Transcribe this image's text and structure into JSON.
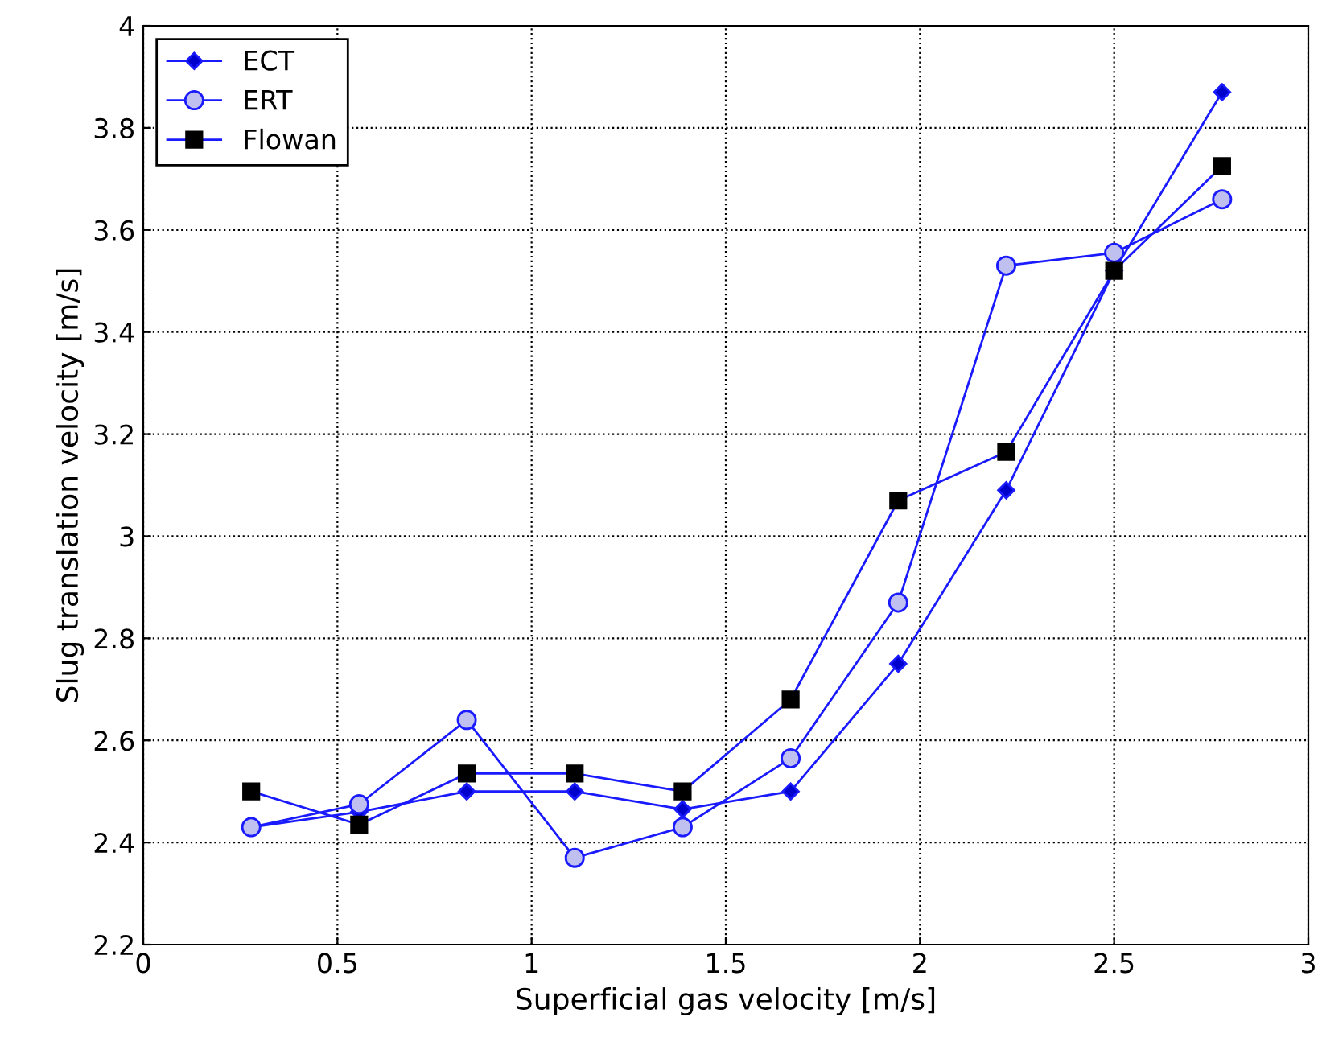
{
  "chart_data": {
    "type": "line",
    "xlabel": "Superficial gas velocity [m/s]",
    "ylabel": "Slug translation velocity [m/s]",
    "x": [
      0.278,
      0.556,
      0.833,
      1.111,
      1.389,
      1.667,
      1.944,
      2.222,
      2.5,
      2.778
    ],
    "series": [
      {
        "name": "ECT",
        "color": "#0000cc",
        "marker": "diamond",
        "values": [
          2.43,
          2.46,
          2.5,
          2.5,
          2.465,
          2.5,
          2.75,
          3.09,
          3.52,
          3.87
        ]
      },
      {
        "name": "ERT",
        "color": "#c0c0f0",
        "marker": "circle",
        "values": [
          2.43,
          2.475,
          2.64,
          2.37,
          2.43,
          2.565,
          2.87,
          3.53,
          3.555,
          3.66
        ]
      },
      {
        "name": "Flowan",
        "color": "#000000",
        "marker": "square",
        "values": [
          2.5,
          2.435,
          2.535,
          2.535,
          2.5,
          2.68,
          3.07,
          3.165,
          3.52,
          3.725
        ]
      }
    ],
    "xlim": [
      0,
      3
    ],
    "xticks": [
      0,
      0.5,
      1,
      1.5,
      2,
      2.5,
      3
    ],
    "ylim": [
      2.2,
      4
    ],
    "yticks": [
      2.2,
      2.4,
      2.6,
      2.8,
      3,
      3.2,
      3.4,
      3.6,
      3.8,
      4
    ],
    "grid": true,
    "legend": "top left",
    "line_style": "solid"
  }
}
